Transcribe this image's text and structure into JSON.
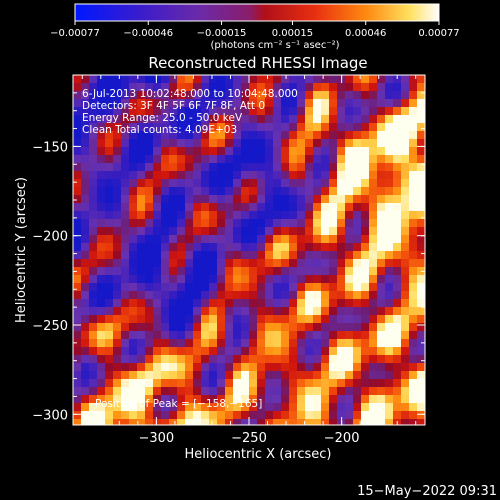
{
  "chart_data": {
    "type": "heatmap",
    "title": "Reconstructed RHESSI Image",
    "xlabel": "Heliocentric X (arcsec)",
    "ylabel": "Heliocentric Y (arcsec)",
    "xlim": [
      -345,
      -155
    ],
    "ylim": [
      -306,
      -110
    ],
    "x_ticks": [
      {
        "value": -300,
        "label": "−300"
      },
      {
        "value": -250,
        "label": "−250"
      },
      {
        "value": -200,
        "label": "−200"
      }
    ],
    "y_ticks": [
      {
        "value": -150,
        "label": "−150"
      },
      {
        "value": -200,
        "label": "−200"
      },
      {
        "value": -250,
        "label": "−250"
      },
      {
        "value": -300,
        "label": "−300"
      }
    ],
    "colorbar": {
      "range": [
        -0.00077,
        0.00077
      ],
      "tick_labels": [
        "−0.00077",
        "−0.00046",
        "−0.00015",
        "0.00015",
        "0.00046",
        "0.00077"
      ],
      "units": "(photons cm⁻² s⁻¹ asec⁻²)",
      "colormap": "blue-purple-red-orange-yellow-white"
    },
    "annotations": [
      " 6-Jul-2013 10:02:48.000 to 10:04:48.000",
      "Detectors: 3F 4F 5F 6F 7F 8F, Att 0",
      "Energy Range: 25.0 - 50.0 keV",
      "Clean    Total counts: 4.09E+03"
    ],
    "peak_label": "Position of Peak = [−158,−165]",
    "peak": {
      "x": -158,
      "y": -165
    },
    "grid": false
  },
  "footer": {
    "timestamp": "15−May−2022 09:31"
  }
}
